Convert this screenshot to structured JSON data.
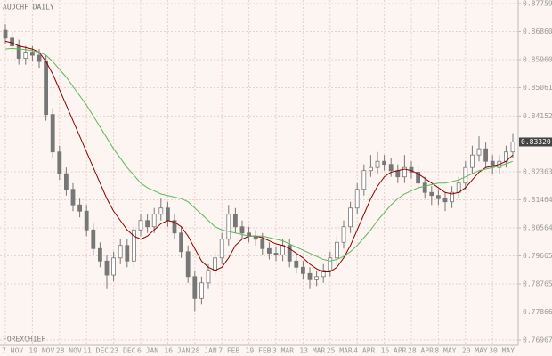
{
  "chart_data": {
    "type": "candlestick",
    "title": "AUDCHF DAILY",
    "watermark": "FOREXCHIEF",
    "categories": [
      "7 NOV",
      null,
      null,
      null,
      "19 NOV",
      null,
      null,
      null,
      "28 NOV",
      null,
      null,
      null,
      "11 DEC",
      null,
      null,
      null,
      "23 DEC",
      null,
      null,
      null,
      "6 JAN",
      null,
      null,
      null,
      "16 JAN",
      null,
      null,
      null,
      "28 JAN",
      null,
      null,
      null,
      "7 FEB",
      null,
      null,
      null,
      "19 FEB",
      null,
      null,
      null,
      "3 MAR",
      null,
      null,
      null,
      "13 MAR",
      null,
      null,
      null,
      "25 MAR",
      null,
      null,
      null,
      "4 APR",
      null,
      null,
      null,
      "16 APR",
      null,
      null,
      null,
      "28 APR",
      null,
      null,
      null,
      "8 MAY",
      null,
      null,
      null,
      "20 MAY",
      null,
      null,
      null,
      "30 MAY",
      null,
      null,
      null
    ],
    "open": [
      0.869,
      0.8665,
      0.864,
      0.86,
      0.862,
      0.861,
      0.859,
      0.842,
      0.83,
      0.823,
      0.818,
      0.813,
      0.811,
      0.805,
      0.799,
      0.795,
      0.7905,
      0.796,
      0.8,
      0.795,
      0.805,
      0.808,
      0.806,
      0.81,
      0.812,
      0.808,
      0.804,
      0.798,
      0.79,
      0.783,
      0.788,
      0.792,
      0.796,
      0.802,
      0.81,
      0.806,
      0.804,
      0.803,
      0.802,
      0.799,
      0.7975,
      0.797,
      0.8,
      0.795,
      0.793,
      0.791,
      0.789,
      0.79,
      0.792,
      0.796,
      0.801,
      0.806,
      0.812,
      0.818,
      0.824,
      0.825,
      0.827,
      0.826,
      0.824,
      0.822,
      0.825,
      0.8235,
      0.82,
      0.817,
      0.816,
      0.815,
      0.814,
      0.817,
      0.82,
      0.825,
      0.829,
      0.831,
      0.827,
      0.825,
      0.827,
      0.83
    ],
    "high": [
      0.871,
      0.8685,
      0.866,
      0.864,
      0.864,
      0.863,
      0.861,
      0.844,
      0.832,
      0.825,
      0.82,
      0.815,
      0.813,
      0.807,
      0.801,
      0.797,
      0.798,
      0.802,
      0.802,
      0.807,
      0.81,
      0.81,
      0.812,
      0.815,
      0.814,
      0.81,
      0.806,
      0.8,
      0.792,
      0.79,
      0.794,
      0.798,
      0.804,
      0.813,
      0.812,
      0.808,
      0.806,
      0.805,
      0.804,
      0.801,
      0.7995,
      0.802,
      0.802,
      0.797,
      0.795,
      0.793,
      0.792,
      0.794,
      0.798,
      0.803,
      0.808,
      0.814,
      0.82,
      0.826,
      0.829,
      0.83,
      0.829,
      0.828,
      0.826,
      0.829,
      0.827,
      0.8255,
      0.822,
      0.819,
      0.818,
      0.817,
      0.819,
      0.822,
      0.827,
      0.832,
      0.835,
      0.833,
      0.829,
      0.829,
      0.832,
      0.836
    ],
    "low": [
      0.8645,
      0.862,
      0.858,
      0.858,
      0.859,
      0.857,
      0.84,
      0.828,
      0.821,
      0.816,
      0.811,
      0.809,
      0.803,
      0.797,
      0.793,
      0.786,
      0.7885,
      0.794,
      0.793,
      0.793,
      0.803,
      0.804,
      0.804,
      0.808,
      0.806,
      0.802,
      0.796,
      0.788,
      0.779,
      0.781,
      0.786,
      0.79,
      0.794,
      0.8,
      0.804,
      0.802,
      0.801,
      0.8,
      0.797,
      0.7955,
      0.795,
      0.795,
      0.793,
      0.791,
      0.789,
      0.786,
      0.787,
      0.788,
      0.79,
      0.794,
      0.799,
      0.804,
      0.81,
      0.816,
      0.822,
      0.823,
      0.824,
      0.822,
      0.82,
      0.82,
      0.8215,
      0.818,
      0.815,
      0.813,
      0.813,
      0.811,
      0.812,
      0.815,
      0.818,
      0.823,
      0.827,
      0.825,
      0.823,
      0.823,
      0.825,
      0.828
    ],
    "close": [
      0.8665,
      0.864,
      0.86,
      0.862,
      0.861,
      0.859,
      0.842,
      0.83,
      0.823,
      0.818,
      0.813,
      0.811,
      0.805,
      0.799,
      0.795,
      0.7905,
      0.796,
      0.8,
      0.795,
      0.805,
      0.808,
      0.806,
      0.81,
      0.812,
      0.808,
      0.804,
      0.798,
      0.79,
      0.783,
      0.788,
      0.792,
      0.796,
      0.802,
      0.81,
      0.806,
      0.804,
      0.803,
      0.802,
      0.799,
      0.7975,
      0.797,
      0.8,
      0.795,
      0.793,
      0.791,
      0.789,
      0.79,
      0.792,
      0.796,
      0.801,
      0.806,
      0.812,
      0.818,
      0.824,
      0.825,
      0.827,
      0.826,
      0.824,
      0.822,
      0.825,
      0.8235,
      0.82,
      0.817,
      0.816,
      0.815,
      0.814,
      0.817,
      0.82,
      0.825,
      0.829,
      0.831,
      0.827,
      0.825,
      0.827,
      0.83,
      0.8332
    ],
    "candle_color": "#777777",
    "lines": [
      {
        "color": "#8b0000",
        "values": [
          0.8655,
          0.865,
          0.864,
          0.8635,
          0.863,
          0.862,
          0.859,
          0.855,
          0.85,
          0.845,
          0.84,
          0.835,
          0.83,
          0.825,
          0.82,
          0.815,
          0.811,
          0.808,
          0.805,
          0.803,
          0.802,
          0.803,
          0.805,
          0.807,
          0.808,
          0.8075,
          0.806,
          0.803,
          0.799,
          0.795,
          0.793,
          0.792,
          0.793,
          0.796,
          0.8,
          0.802,
          0.803,
          0.803,
          0.8025,
          0.8015,
          0.8005,
          0.8,
          0.799,
          0.7975,
          0.796,
          0.794,
          0.7925,
          0.7915,
          0.7915,
          0.793,
          0.796,
          0.8,
          0.805,
          0.81,
          0.815,
          0.819,
          0.822,
          0.8235,
          0.824,
          0.8245,
          0.824,
          0.823,
          0.8215,
          0.82,
          0.8185,
          0.817,
          0.8165,
          0.817,
          0.8185,
          0.821,
          0.8235,
          0.825,
          0.8255,
          0.826,
          0.827,
          0.829
        ]
      },
      {
        "color": "#5cb85c",
        "values": [
          0.863,
          0.8632,
          0.863,
          0.8628,
          0.8625,
          0.862,
          0.861,
          0.859,
          0.8565,
          0.854,
          0.851,
          0.848,
          0.845,
          0.8415,
          0.838,
          0.8345,
          0.831,
          0.828,
          0.825,
          0.8225,
          0.82,
          0.8185,
          0.8175,
          0.8165,
          0.816,
          0.8155,
          0.815,
          0.814,
          0.812,
          0.81,
          0.808,
          0.806,
          0.805,
          0.8045,
          0.804,
          0.8035,
          0.803,
          0.803,
          0.803,
          0.8025,
          0.802,
          0.8015,
          0.8005,
          0.7995,
          0.7985,
          0.7975,
          0.7965,
          0.7955,
          0.795,
          0.7955,
          0.7965,
          0.798,
          0.8,
          0.8025,
          0.805,
          0.808,
          0.8105,
          0.813,
          0.815,
          0.8165,
          0.8175,
          0.8185,
          0.819,
          0.8195,
          0.82,
          0.82,
          0.8205,
          0.821,
          0.822,
          0.823,
          0.824,
          0.8245,
          0.825,
          0.8255,
          0.8262,
          0.827
        ]
      }
    ],
    "last_price": {
      "value": 0.8332,
      "label": "0.83320"
    },
    "ylim": [
      0.76796,
      0.87873
    ],
    "yticks": [
      {
        "value": 0.87759,
        "label": "0.87759"
      },
      {
        "value": 0.8686,
        "label": "0.86860"
      },
      {
        "value": 0.8596,
        "label": "0.85960"
      },
      {
        "value": 0.85061,
        "label": "0.85061"
      },
      {
        "value": 0.84152,
        "label": "0.84152"
      },
      {
        "value": 0.82363,
        "label": "0.82363"
      },
      {
        "value": 0.81464,
        "label": "0.81464"
      },
      {
        "value": 0.80564,
        "label": "0.80564"
      },
      {
        "value": 0.79665,
        "label": "0.79665"
      },
      {
        "value": 0.78765,
        "label": "0.78765"
      },
      {
        "value": 0.77866,
        "label": "0.77866"
      },
      {
        "value": 0.76967,
        "label": "0.76967"
      }
    ],
    "grid": true
  }
}
